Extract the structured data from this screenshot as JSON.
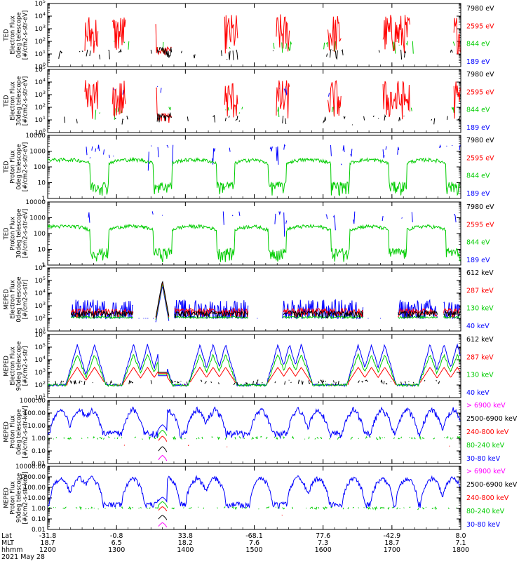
{
  "figure": {
    "date_label": "2021 May 28",
    "row_labels": [
      "Lat",
      "MLT",
      "hhmm"
    ]
  },
  "chart_data": [
    {
      "type": "line",
      "ylabel": [
        "TED",
        "Electron Flux",
        "0deg telescope",
        "[#/cm2-s-str-eV]"
      ],
      "yscale": "log",
      "ylim": [
        1,
        100000
      ],
      "ytick_labels": [
        "10^0",
        "10^1",
        "10^2",
        "10^3",
        "10^4",
        "10^5"
      ],
      "legend": [
        {
          "label": "7980 eV",
          "color": "#000000"
        },
        {
          "label": "2595 eV",
          "color": "#ff0000"
        },
        {
          "label": "844 eV",
          "color": "#00cc00"
        },
        {
          "label": "189 eV",
          "color": "#0000ff"
        }
      ],
      "profile": "ted0"
    },
    {
      "type": "line",
      "ylabel": [
        "TED",
        "Electron Flux",
        "30deg telescope",
        "[#/cm2-s-str-eV]"
      ],
      "yscale": "log",
      "ylim": [
        1,
        100000
      ],
      "ytick_labels": [
        "10^0",
        "10^1",
        "10^2",
        "10^3",
        "10^4",
        "10^5"
      ],
      "legend": [
        {
          "label": "7980 eV",
          "color": "#000000"
        },
        {
          "label": "2595 eV",
          "color": "#ff0000"
        },
        {
          "label": "844 eV",
          "color": "#00cc00"
        },
        {
          "label": "189 eV",
          "color": "#0000ff"
        }
      ],
      "profile": "ted30"
    },
    {
      "type": "line",
      "ylabel": [
        "TED",
        "Proton Flux",
        "0deg telescope",
        "[#/cm2-s-str-eV]"
      ],
      "yscale": "log",
      "ylim": [
        1,
        10000
      ],
      "ytick_labels": [
        "1",
        "10",
        "100",
        "1000",
        "10000"
      ],
      "legend": [
        {
          "label": "7980 eV",
          "color": "#000000"
        },
        {
          "label": "2595 eV",
          "color": "#ff0000"
        },
        {
          "label": "844 eV",
          "color": "#00cc00"
        },
        {
          "label": "189 eV",
          "color": "#0000ff"
        }
      ],
      "profile": "proton"
    },
    {
      "type": "line",
      "ylabel": [
        "TED",
        "Proton Flux",
        "30deg telescope",
        "[#/cm2-s-str-eV]"
      ],
      "yscale": "log",
      "ylim": [
        1,
        10000
      ],
      "ytick_labels": [
        "1",
        "10",
        "100",
        "1000",
        "10000"
      ],
      "legend": [
        {
          "label": "7980 eV",
          "color": "#000000"
        },
        {
          "label": "2595 eV",
          "color": "#ff0000"
        },
        {
          "label": "844 eV",
          "color": "#00cc00"
        },
        {
          "label": "189 eV",
          "color": "#0000ff"
        }
      ],
      "profile": "proton"
    },
    {
      "type": "line",
      "ylabel": [
        "MEPED",
        "Electron Flux",
        "0deg telescope",
        "[#/cm2-s-str]"
      ],
      "yscale": "log",
      "ylim": [
        10,
        1000000
      ],
      "ytick_labels": [
        "10^1",
        "10^2",
        "10^3",
        "10^4",
        "10^5",
        "10^6"
      ],
      "legend": [
        {
          "label": "612 keV",
          "color": "#000000"
        },
        {
          "label": "287 keV",
          "color": "#ff0000"
        },
        {
          "label": "130 keV",
          "color": "#00cc00"
        },
        {
          "label": "40 keV",
          "color": "#0000ff"
        }
      ],
      "profile": "meped0"
    },
    {
      "type": "line",
      "ylabel": [
        "MEPED",
        "Electron Flux",
        "90deg telescope",
        "[#/cm2-s-str]"
      ],
      "yscale": "log",
      "ylim": [
        10,
        1000000
      ],
      "ytick_labels": [
        "10^1",
        "10^2",
        "10^3",
        "10^4",
        "10^5",
        "10^6"
      ],
      "legend": [
        {
          "label": "612 keV",
          "color": "#000000"
        },
        {
          "label": "287 keV",
          "color": "#ff0000"
        },
        {
          "label": "130 keV",
          "color": "#00cc00"
        },
        {
          "label": "40 keV",
          "color": "#0000ff"
        }
      ],
      "profile": "meped90"
    },
    {
      "type": "line",
      "ylabel": [
        "MEPED",
        "Proton Flux",
        "0deg telescope",
        "[#/cm2-s-str-keV]"
      ],
      "yscale": "log",
      "ylim": [
        0.01,
        1000
      ],
      "ytick_labels": [
        "0.01",
        "0.10",
        "1.00",
        "10.00",
        "100.00",
        "1000.00"
      ],
      "legend": [
        {
          "label": "> 6900 keV",
          "color": "#ff00ff"
        },
        {
          "label": "2500-6900 keV",
          "color": "#000000"
        },
        {
          "label": "240-800 keV",
          "color": "#ff0000"
        },
        {
          "label": "80-240 keV",
          "color": "#00cc00"
        },
        {
          "label": "30-80 keV",
          "color": "#0000ff"
        }
      ],
      "profile": "mp0"
    },
    {
      "type": "line",
      "ylabel": [
        "MEPED",
        "Proton Flux",
        "90deg telescope",
        "[#/cm2-s-str-keV]"
      ],
      "yscale": "log",
      "ylim": [
        0.01,
        10000
      ],
      "ytick_labels": [
        "0.01",
        "0.10",
        "1.00",
        "10.00",
        "100.00",
        "1000.00",
        "10000.00"
      ],
      "legend": [
        {
          "label": "> 6900 keV",
          "color": "#ff00ff"
        },
        {
          "label": "2500-6900 keV",
          "color": "#000000"
        },
        {
          "label": "240-800 keV",
          "color": "#ff0000"
        },
        {
          "label": "80-240 keV",
          "color": "#00cc00"
        },
        {
          "label": "30-80 keV",
          "color": "#0000ff"
        }
      ],
      "profile": "mp90"
    }
  ],
  "x_axis": {
    "range_hhmm": [
      1200,
      1800
    ],
    "ticks": [
      {
        "hhmm": "1200",
        "lat": "-31.8",
        "mlt": "18.7"
      },
      {
        "hhmm": "1300",
        "lat": "-0.8",
        "mlt": "6.5"
      },
      {
        "hhmm": "1400",
        "lat": "33.8",
        "mlt": "18.2"
      },
      {
        "hhmm": "1500",
        "lat": "-68.1",
        "mlt": "7.6"
      },
      {
        "hhmm": "1600",
        "lat": "77.6",
        "mlt": "7.3"
      },
      {
        "hhmm": "1700",
        "lat": "-42.9",
        "mlt": "18.7"
      },
      {
        "hhmm": "1800",
        "lat": "8.0",
        "mlt": "7.1"
      }
    ]
  }
}
